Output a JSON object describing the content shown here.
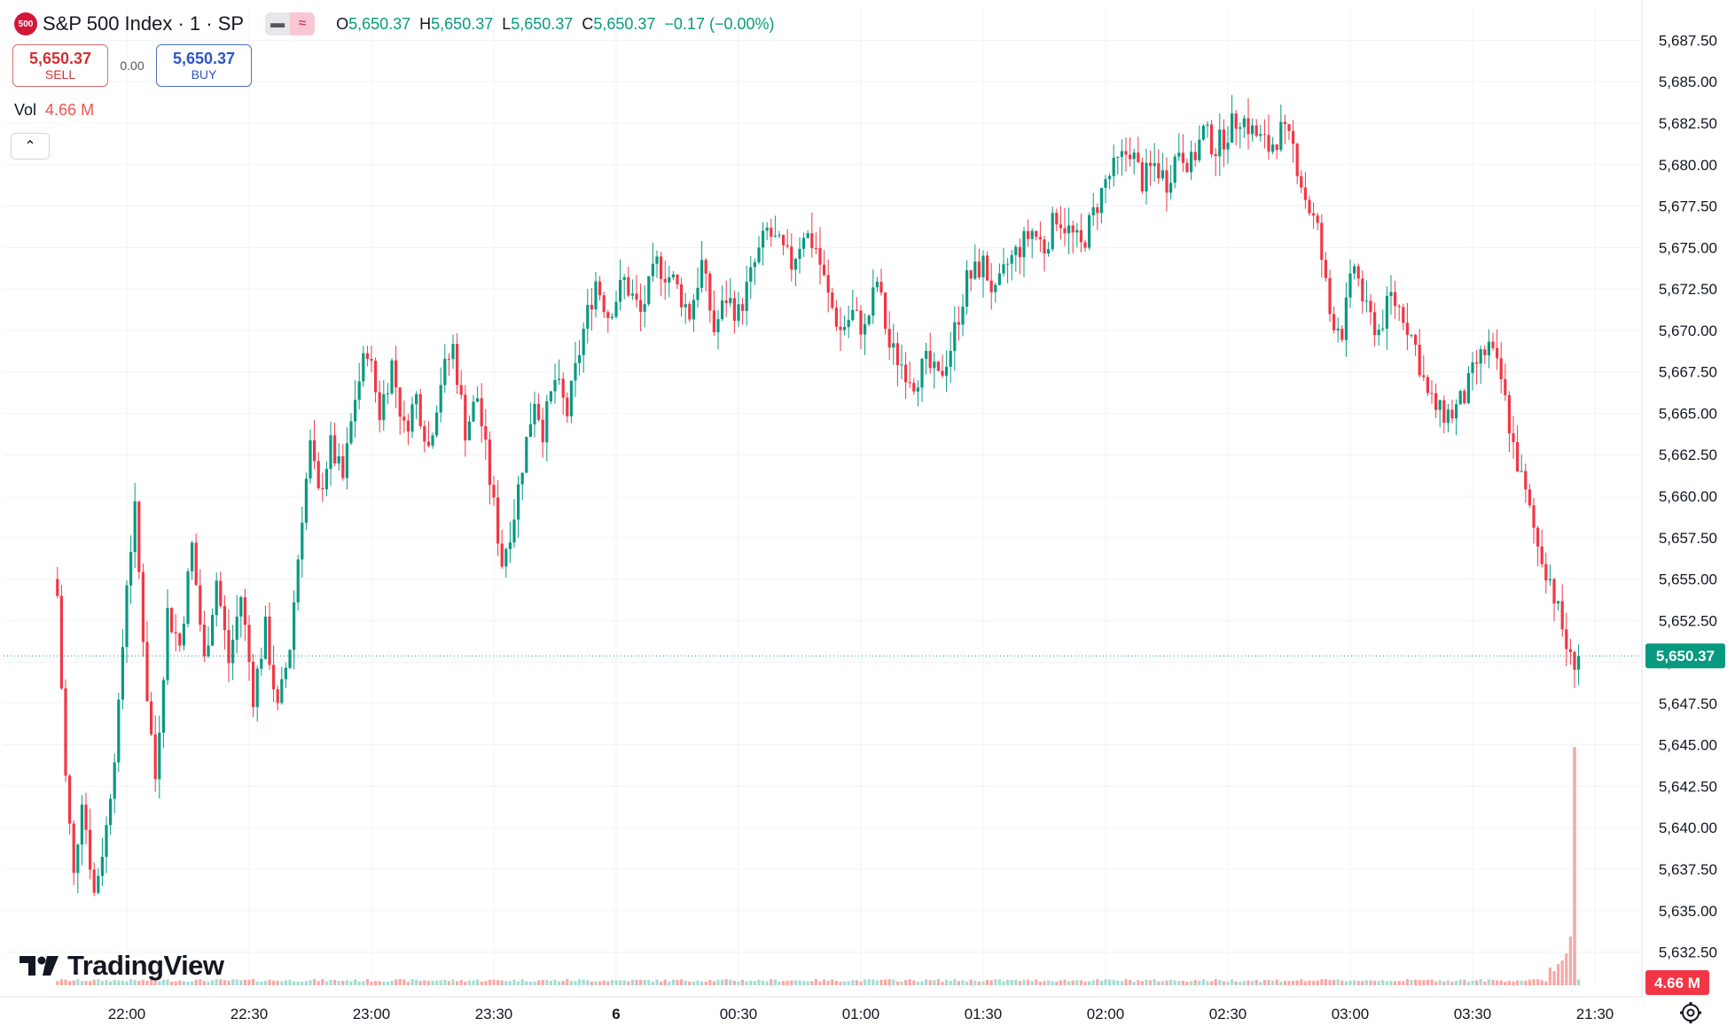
{
  "header": {
    "symbol_badge": "500",
    "title": "S&P 500 Index · 1 · SP",
    "ohlc": [
      {
        "label": "O",
        "value": "5,650.37"
      },
      {
        "label": "H",
        "value": "5,650.37"
      },
      {
        "label": "L",
        "value": "5,650.37"
      },
      {
        "label": "C",
        "value": "5,650.37"
      }
    ],
    "change": "−0.17 (−0.00%)"
  },
  "trade": {
    "sell_price": "5,650.37",
    "sell_label": "SELL",
    "spread": "0.00",
    "buy_price": "5,650.37",
    "buy_label": "BUY"
  },
  "volume": {
    "label": "Vol",
    "value": "4.66 M"
  },
  "watermark": "TradingView",
  "colors": {
    "up": "#089981",
    "down": "#f23645",
    "vol_down": "#f7a9a7",
    "vol_up": "#a6dcd3",
    "grid": "#f0f3fa"
  },
  "chart_data": {
    "type": "candlestick",
    "interval_minutes": 1,
    "ylim": [
      5630.5,
      5689.5
    ],
    "y_ticks": [
      "5,687.50",
      "5,685.00",
      "5,682.50",
      "5,680.00",
      "5,677.50",
      "5,675.00",
      "5,672.50",
      "5,670.00",
      "5,667.50",
      "5,665.00",
      "5,662.50",
      "5,660.00",
      "5,657.50",
      "5,655.00",
      "5,652.50",
      "5,650.00",
      "5,647.50",
      "5,645.00",
      "5,642.50",
      "5,640.00",
      "5,637.50",
      "5,635.00",
      "5,632.50"
    ],
    "x_ticks": [
      "22:00",
      "22:30",
      "23:00",
      "23:30",
      "6",
      "00:30",
      "01:00",
      "01:30",
      "02:00",
      "02:30",
      "03:00",
      "03:30",
      "21:30"
    ],
    "last_price": "5,650.37",
    "last_volume": "4.66 M",
    "path": [
      [
        "21:43",
        5654
      ],
      [
        "21:45",
        5643
      ],
      [
        "21:47",
        5637
      ],
      [
        "21:49",
        5642
      ],
      [
        "21:52",
        5636
      ],
      [
        "21:55",
        5640
      ],
      [
        "21:58",
        5647
      ],
      [
        "22:00",
        5655
      ],
      [
        "22:02",
        5659
      ],
      [
        "22:05",
        5648
      ],
      [
        "22:07",
        5643
      ],
      [
        "22:10",
        5653
      ],
      [
        "22:13",
        5651
      ],
      [
        "22:16",
        5657
      ],
      [
        "22:19",
        5650
      ],
      [
        "22:22",
        5655
      ],
      [
        "22:25",
        5650
      ],
      [
        "22:28",
        5654
      ],
      [
        "22:31",
        5648
      ],
      [
        "22:34",
        5652
      ],
      [
        "22:37",
        5647
      ],
      [
        "22:40",
        5651
      ],
      [
        "22:43",
        5659
      ],
      [
        "22:45",
        5663
      ],
      [
        "22:47",
        5660
      ],
      [
        "22:50",
        5663
      ],
      [
        "22:53",
        5661
      ],
      [
        "22:56",
        5666
      ],
      [
        "22:59",
        5669
      ],
      [
        "23:02",
        5665
      ],
      [
        "23:05",
        5668
      ],
      [
        "23:08",
        5664
      ],
      [
        "23:11",
        5666
      ],
      [
        "23:14",
        5663
      ],
      [
        "23:17",
        5667
      ],
      [
        "23:20",
        5669
      ],
      [
        "23:23",
        5664
      ],
      [
        "23:26",
        5666
      ],
      [
        "23:29",
        5661
      ],
      [
        "23:32",
        5656
      ],
      [
        "23:35",
        5659
      ],
      [
        "23:37",
        5662
      ],
      [
        "23:40",
        5666
      ],
      [
        "23:42",
        5664
      ],
      [
        "23:45",
        5667
      ],
      [
        "23:48",
        5665
      ],
      [
        "23:52",
        5670
      ],
      [
        "23:55",
        5673
      ],
      [
        "23:58",
        5671
      ],
      [
        "00:02",
        5673
      ],
      [
        "00:06",
        5671
      ],
      [
        "00:10",
        5674
      ],
      [
        "00:14",
        5673
      ],
      [
        "00:18",
        5671
      ],
      [
        "00:21",
        5674
      ],
      [
        "00:24",
        5670
      ],
      [
        "00:27",
        5672
      ],
      [
        "00:30",
        5671
      ],
      [
        "00:34",
        5674
      ],
      [
        "00:37",
        5676
      ],
      [
        "00:40",
        5675
      ],
      [
        "00:43",
        5674
      ],
      [
        "00:46",
        5676
      ],
      [
        "00:49",
        5675
      ],
      [
        "00:52",
        5672
      ],
      [
        "00:55",
        5670
      ],
      [
        "00:58",
        5671
      ],
      [
        "01:01",
        5670
      ],
      [
        "01:04",
        5673
      ],
      [
        "01:07",
        5669
      ],
      [
        "01:10",
        5668
      ],
      [
        "01:13",
        5667
      ],
      [
        "01:16",
        5668
      ],
      [
        "01:19",
        5667
      ],
      [
        "01:22",
        5669
      ],
      [
        "01:26",
        5673
      ],
      [
        "01:30",
        5674
      ],
      [
        "01:33",
        5672
      ],
      [
        "01:36",
        5674
      ],
      [
        "01:39",
        5675
      ],
      [
        "01:42",
        5676
      ],
      [
        "01:45",
        5675
      ],
      [
        "01:48",
        5677
      ],
      [
        "01:51",
        5676
      ],
      [
        "01:54",
        5675
      ],
      [
        "01:57",
        5677
      ],
      [
        "02:00",
        5679
      ],
      [
        "02:03",
        5680
      ],
      [
        "02:06",
        5681
      ],
      [
        "02:09",
        5679
      ],
      [
        "02:12",
        5680
      ],
      [
        "02:15",
        5679
      ],
      [
        "02:18",
        5681
      ],
      [
        "02:21",
        5680
      ],
      [
        "02:24",
        5682
      ],
      [
        "02:27",
        5681
      ],
      [
        "02:30",
        5682
      ],
      [
        "02:33",
        5683
      ],
      [
        "02:36",
        5682
      ],
      [
        "02:40",
        5681
      ],
      [
        "02:43",
        5682
      ],
      [
        "02:46",
        5681
      ],
      [
        "02:49",
        5678
      ],
      [
        "02:52",
        5676
      ],
      [
        "02:55",
        5671
      ],
      [
        "02:58",
        5670
      ],
      [
        "03:01",
        5674
      ],
      [
        "03:04",
        5671
      ],
      [
        "03:07",
        5670
      ],
      [
        "03:10",
        5672
      ],
      [
        "03:13",
        5671
      ],
      [
        "03:16",
        5669
      ],
      [
        "03:19",
        5666
      ],
      [
        "03:22",
        5665
      ],
      [
        "03:25",
        5665
      ],
      [
        "03:28",
        5666
      ],
      [
        "03:31",
        5668
      ],
      [
        "03:34",
        5669
      ],
      [
        "03:37",
        5667
      ],
      [
        "03:40",
        5663
      ],
      [
        "03:43",
        5660
      ],
      [
        "03:46",
        5657
      ],
      [
        "03:49",
        5655
      ],
      [
        "03:52",
        5652
      ],
      [
        "03:54",
        5650
      ],
      [
        "03:56",
        5650.37
      ]
    ],
    "volume_spikes": [
      {
        "time": "03:53",
        "value": "4.66 M"
      }
    ]
  }
}
